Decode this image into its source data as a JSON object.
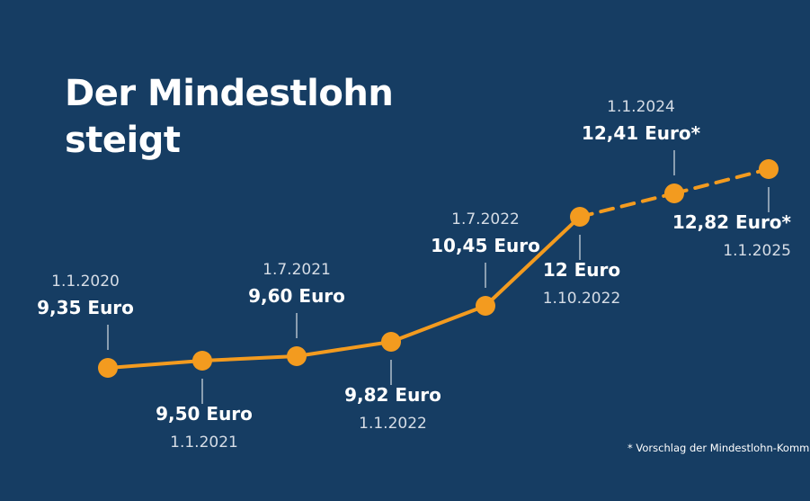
{
  "title_line1": "Der Mindestlohn",
  "title_line2": "steigt",
  "footnote": "* Vorschlag der Mindestlohn-Kommission",
  "colors": {
    "background": "#163d63",
    "line": "#f39b1f",
    "text": "#ffffff",
    "date_text": "#d6dde6"
  },
  "chart_data": {
    "type": "line",
    "x": [
      "2020-01-01",
      "2021-01-01",
      "2021-07-01",
      "2022-01-01",
      "2022-07-01",
      "2022-10-01",
      "2024-01-01",
      "2025-01-01"
    ],
    "values": [
      9.35,
      9.5,
      9.6,
      9.82,
      10.45,
      12.0,
      12.41,
      12.82
    ],
    "value_labels": [
      "9,35 Euro",
      "9,50 Euro",
      "9,60 Euro",
      "9,82 Euro",
      "10,45 Euro",
      "12 Euro",
      "12,41 Euro*",
      "12,82 Euro*"
    ],
    "date_labels": [
      "1.1.2020",
      "1.1.2021",
      "1.7.2021",
      "1.1.2022",
      "1.7.2022",
      "1.10.2022",
      "1.1.2024",
      "1.1.2025"
    ],
    "label_positions": [
      "above",
      "below",
      "above",
      "below",
      "above",
      "below",
      "above",
      "below"
    ],
    "proposed": [
      false,
      false,
      false,
      false,
      false,
      false,
      true,
      true
    ],
    "grid": false,
    "legend": "none"
  }
}
